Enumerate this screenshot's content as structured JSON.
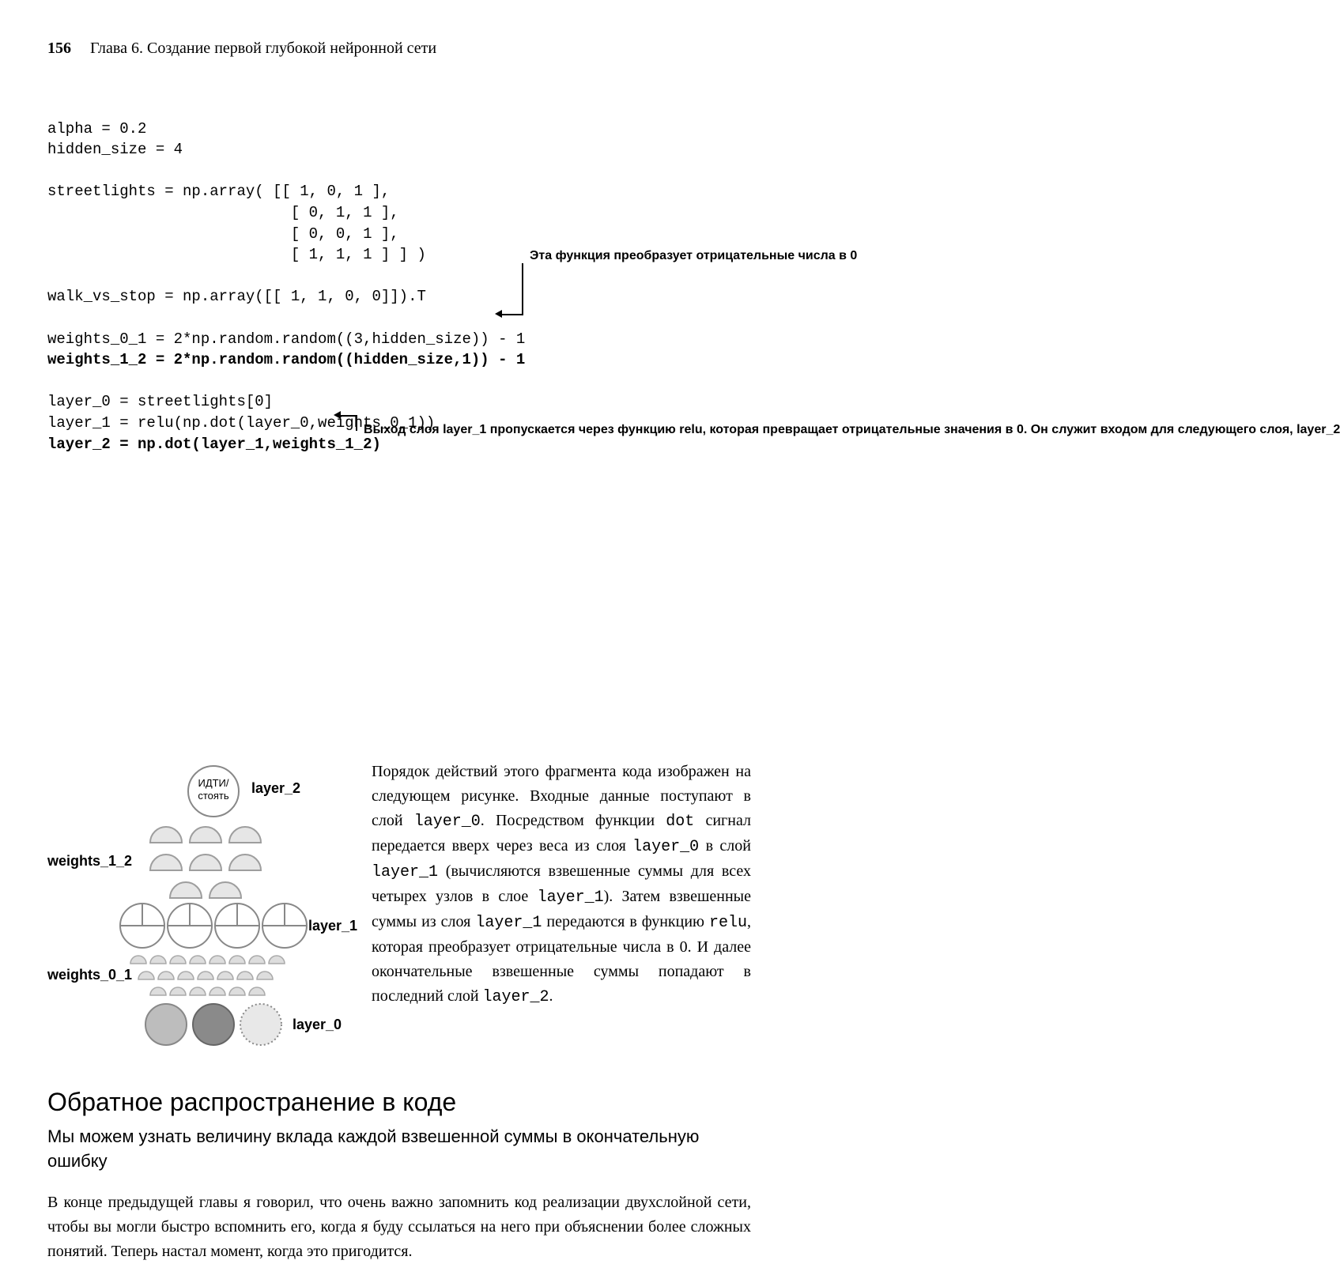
{
  "header": {
    "page": "156",
    "chapter": "Глава 6. Создание первой глубокой нейронной сети"
  },
  "code": {
    "l1": "alpha = 0.2",
    "l2": "hidden_size = 4",
    "l3": "",
    "l4": "streetlights = np.array( [[ 1, 0, 1 ],",
    "l5": "                           [ 0, 1, 1 ],",
    "l6": "                           [ 0, 0, 1 ],",
    "l7": "                           [ 1, 1, 1 ] ] )",
    "l8": "",
    "l9": "walk_vs_stop = np.array([[ 1, 1, 0, 0]]).T",
    "l10": "",
    "l11": "weights_0_1 = 2*np.random.random((3,hidden_size)) - 1",
    "l12": "weights_1_2 = 2*np.random.random((hidden_size,1)) - 1",
    "l13": "",
    "l14": "layer_0 = streetlights[0]",
    "l15": "layer_1 = relu(np.dot(layer_0,weights_0_1))",
    "l16": "layer_2 = np.dot(layer_1,weights_1_2)"
  },
  "annotations": {
    "a1": "Эта функция преобразует отрицательные числа в 0",
    "a2": "Выход слоя layer_1 пропускается через функцию relu, которая превращает отрицательные значения в 0. Он служит входом для следующего слоя, layer_2"
  },
  "diagram": {
    "output_node": "ИДТИ/\nстоять",
    "labels": {
      "layer_2": "layer_2",
      "weights_1_2": "weights_1_2",
      "layer_1": "layer_1",
      "weights_0_1": "weights_0_1",
      "layer_0": "layer_0"
    },
    "colors": {
      "node_stroke": "#888888",
      "node_fill_light": "#f0f0f0",
      "node_fill_mid": "#bdbdbd",
      "node_fill_dark": "#8a8a8a",
      "node_fill_dotted": "#e8e8e8",
      "weight_stroke": "#aaaaaa",
      "arc_stroke": "#9e9e9e"
    }
  },
  "paragraph": {
    "text": "Порядок действий этого фрагмента кода изображен на следующем рисунке. Входные данные поступают в слой layer_0. Посредством функции dot сигнал передается вверх через веса из слоя layer_0 в слой layer_1 (вычисляются взвешенные суммы для всех четырех узлов в слое layer_1). Затем взвешенные суммы из слоя layer_1 передаются в функцию relu, которая преобразует отрицательные числа в 0. И далее окончательные взвешенные суммы попадают в последний слой layer_2."
  },
  "section": {
    "title": "Обратное распространение в коде",
    "subhead": "Мы можем узнать величину вклада каждой взвешенной суммы в окончательную ошибку",
    "body": "В конце предыдущей главы я говорил, что очень важно запомнить код реализации двухслойной сети, чтобы вы могли быстро вспомнить его, когда я буду ссылаться на него при объяснении более сложных понятий. Теперь настал момент, когда это пригодится."
  }
}
